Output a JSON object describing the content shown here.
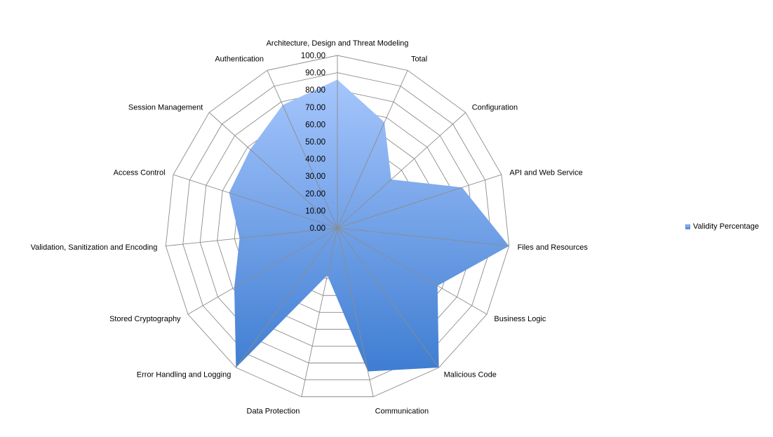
{
  "chart_data": {
    "type": "radar",
    "categories": [
      "Architecture, Design and Threat Modeling",
      "Total",
      "Configuration",
      "API and Web Service",
      "Files and Resources",
      "Business Logic",
      "Malicious Code",
      "Communication",
      "Data Protection",
      "Error Handling and Logging",
      "Stored Cryptography",
      "Validation, Sanitization and Encoding",
      "Access Control",
      "Session Management",
      "Authentication"
    ],
    "series": [
      {
        "name": "Validity Percentage",
        "values": [
          86,
          67,
          42,
          76,
          100,
          67,
          100,
          85,
          28,
          100,
          69,
          57,
          66,
          68,
          78
        ]
      }
    ],
    "rlim": [
      0,
      100
    ],
    "tick_labels": [
      "0.00",
      "10.00",
      "20.00",
      "30.00",
      "40.00",
      "50.00",
      "60.00",
      "70.00",
      "80.00",
      "90.00",
      "100.00"
    ],
    "grid": true,
    "legend_position": "right",
    "colors": {
      "fill_top": "#a6c6fc",
      "fill_bottom": "#3f7dd2",
      "grid": "#8c8c8c"
    }
  }
}
